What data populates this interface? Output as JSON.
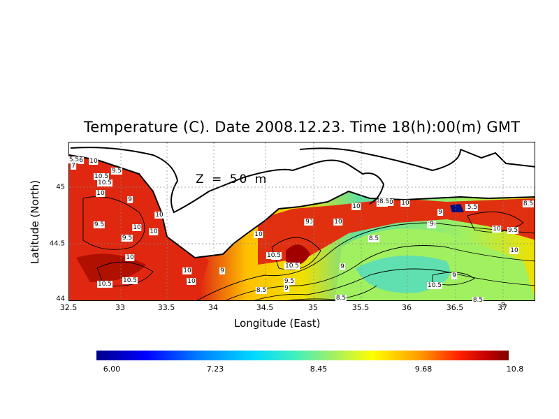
{
  "title": "Temperature (C). Date 2008.12.23. Time 18(h):00(m) GMT",
  "depth_label": "Z  =  50  m",
  "axes": {
    "xlabel": "Longitude (East)",
    "ylabel": "Latitude (North)",
    "xticks": [
      "32.5",
      "33",
      "33.5",
      "34",
      "34.5",
      "35",
      "35.5",
      "36",
      "36.5",
      "37"
    ],
    "yticks": [
      "45",
      "44.5",
      "44"
    ]
  },
  "colorbar": {
    "labels": [
      "6.00",
      "7.23",
      "8.45",
      "9.68",
      "10.8"
    ],
    "min": 6.0,
    "max": 10.8
  },
  "contour_labels": [
    "6",
    "5.5",
    "7",
    "10",
    "10.5",
    "9.5",
    "10.5",
    "10",
    "9",
    "10",
    "9.5",
    "10",
    "9.5",
    "10",
    "10",
    "10",
    "10",
    "10.5",
    "10.5",
    "10",
    "10",
    "10.5",
    "10.5",
    "10",
    "9",
    "9",
    "9.5",
    "8.5",
    "8.5",
    "9",
    "8.5",
    "8.5",
    "9.5",
    "10",
    "10",
    "10",
    "9",
    "10",
    "10",
    "8.5",
    "10",
    "10.5",
    "5.5",
    "5.5",
    "9",
    "9",
    "10",
    "9.5",
    "9",
    "8.5",
    "9",
    "8.5"
  ],
  "colors": {
    "land": "#ffffff",
    "coast": "#000000",
    "warm": "#e0200a",
    "hot": "#a00000",
    "mid": "#ffd000",
    "cool": "#60e8a0"
  }
}
